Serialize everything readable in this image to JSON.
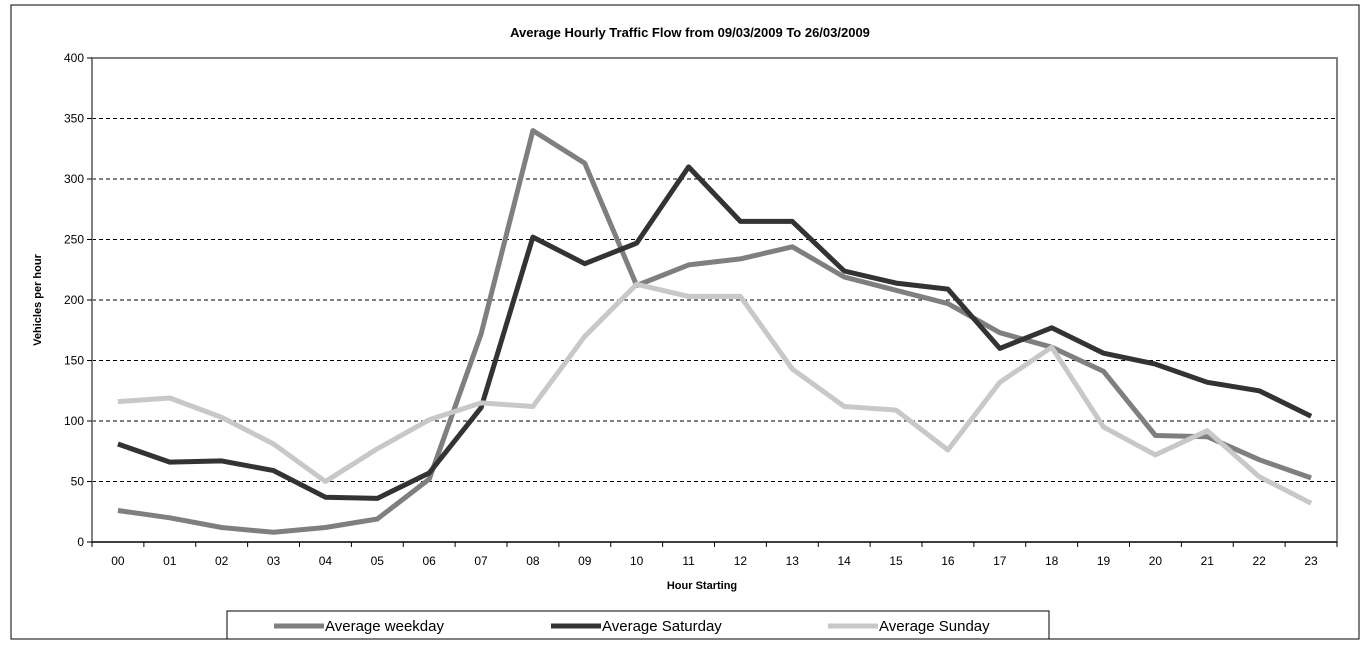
{
  "chart_data": {
    "type": "line",
    "title": "Average Hourly Traffic Flow from 09/03/2009 To 26/03/2009",
    "xlabel": "Hour Starting",
    "ylabel": "Vehicles per hour",
    "ylim": [
      0,
      400
    ],
    "yticks": [
      "0",
      "50",
      "100",
      "150",
      "200",
      "250",
      "300",
      "350",
      "400"
    ],
    "grid": "horizontal dashed",
    "legend_position": "bottom",
    "categories": [
      "00",
      "01",
      "02",
      "03",
      "04",
      "05",
      "06",
      "07",
      "08",
      "09",
      "10",
      "11",
      "12",
      "13",
      "14",
      "15",
      "16",
      "17",
      "18",
      "19",
      "20",
      "21",
      "22",
      "23"
    ],
    "series": [
      {
        "name": "Average weekday",
        "color": "#7f7f7f",
        "values": [
          26,
          20,
          12,
          8,
          12,
          19,
          52,
          172,
          340,
          313,
          212,
          229,
          234,
          244,
          219,
          208,
          197,
          173,
          161,
          141,
          88,
          87,
          68,
          53
        ]
      },
      {
        "name": "Average Saturday",
        "color": "#333333",
        "values": [
          81,
          66,
          67,
          59,
          37,
          36,
          57,
          111,
          252,
          230,
          247,
          310,
          265,
          265,
          224,
          214,
          209,
          160,
          177,
          156,
          147,
          132,
          125,
          104
        ]
      },
      {
        "name": "Average Sunday",
        "color": "#c8c8c8",
        "values": [
          116,
          119,
          103,
          81,
          50,
          77,
          101,
          115,
          112,
          170,
          213,
          203,
          203,
          143,
          112,
          109,
          76,
          132,
          161,
          95,
          72,
          92,
          54,
          32
        ]
      }
    ]
  }
}
